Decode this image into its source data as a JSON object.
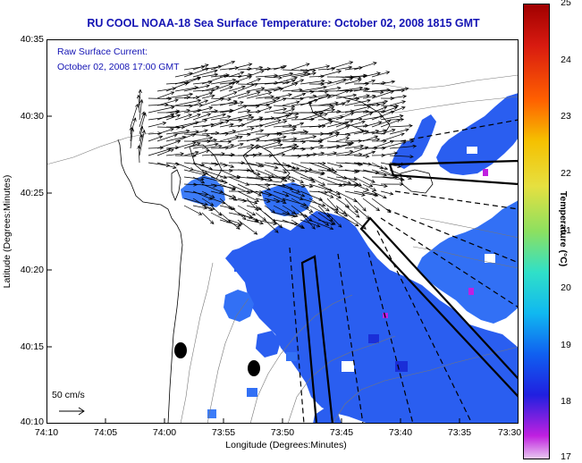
{
  "title": "RU COOL  NOAA-18  Sea Surface Temperature:  October 02, 2008 1815 GMT",
  "current_legend": {
    "line1": "Raw Surface Current:",
    "line2": "October 02, 2008 17:00 GMT"
  },
  "scale_label": "50 cm/s",
  "axes": {
    "xlabel": "Longitude (Degrees:Minutes)",
    "ylabel": "Latitude (Degrees:Minutes)",
    "x_ticks": [
      "74:10",
      "74:05",
      "74:00",
      "73:55",
      "73:50",
      "73:45",
      "73:40",
      "73:35",
      "73:30"
    ],
    "y_ticks": [
      "40:35",
      "40:30",
      "40:25",
      "40:20",
      "40:15",
      "40:10"
    ]
  },
  "colorbar": {
    "label": "Temperature (°C)",
    "ticks": [
      "25",
      "24",
      "23",
      "22",
      "21",
      "20",
      "19",
      "18",
      "17"
    ],
    "colors": {
      "sst_main": "#2a5ef0",
      "sst_light": "#3c7cf8",
      "sst_deep": "#1a2ed8",
      "magenta": "#c020e0",
      "land": "#ffffff"
    }
  }
}
